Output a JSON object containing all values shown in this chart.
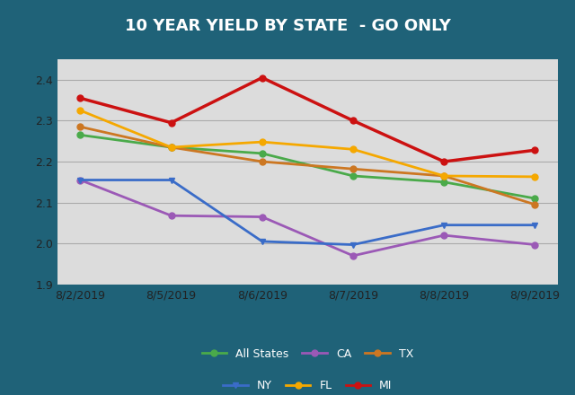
{
  "title": "10 YEAR YIELD BY STATE  - GO ONLY",
  "x_labels": [
    "8/2/2019",
    "8/5/2019",
    "8/6/2019",
    "8/7/2019",
    "8/8/2019",
    "8/9/2019"
  ],
  "series_order": [
    "All States",
    "CA",
    "TX",
    "NY",
    "FL",
    "MI"
  ],
  "series": {
    "All States": {
      "values": [
        2.265,
        2.235,
        2.22,
        2.165,
        2.15,
        2.11
      ],
      "color": "#4aaa4a",
      "marker": "o",
      "linewidth": 2.0
    },
    "CA": {
      "values": [
        2.155,
        2.068,
        2.065,
        1.97,
        2.02,
        1.997
      ],
      "color": "#9b59b6",
      "marker": "o",
      "linewidth": 2.0
    },
    "TX": {
      "values": [
        2.285,
        2.235,
        2.2,
        2.182,
        2.165,
        2.095
      ],
      "color": "#cc7722",
      "marker": "o",
      "linewidth": 2.0
    },
    "NY": {
      "values": [
        2.155,
        2.155,
        2.005,
        1.997,
        2.045,
        2.045
      ],
      "color": "#3a6cc8",
      "marker": "v",
      "linewidth": 2.0
    },
    "FL": {
      "values": [
        2.325,
        2.235,
        2.248,
        2.23,
        2.165,
        2.163
      ],
      "color": "#f5a800",
      "marker": "o",
      "linewidth": 2.0
    },
    "MI": {
      "values": [
        2.355,
        2.295,
        2.405,
        2.3,
        2.2,
        2.228
      ],
      "color": "#cc1111",
      "marker": "o",
      "linewidth": 2.5
    }
  },
  "ylim": [
    1.9,
    2.45
  ],
  "yticks": [
    1.9,
    2.0,
    2.1,
    2.2,
    2.3,
    2.4
  ],
  "plot_bg_color": "#dcdcdc",
  "title_bg_color": "#1f6278",
  "outer_bg_color": "#1f6278",
  "title_color": "#ffffff",
  "grid_color": "#aaaaaa",
  "tick_color": "#222222",
  "legend_bg_color": "#1f6278",
  "legend_text_color": "#ffffff"
}
